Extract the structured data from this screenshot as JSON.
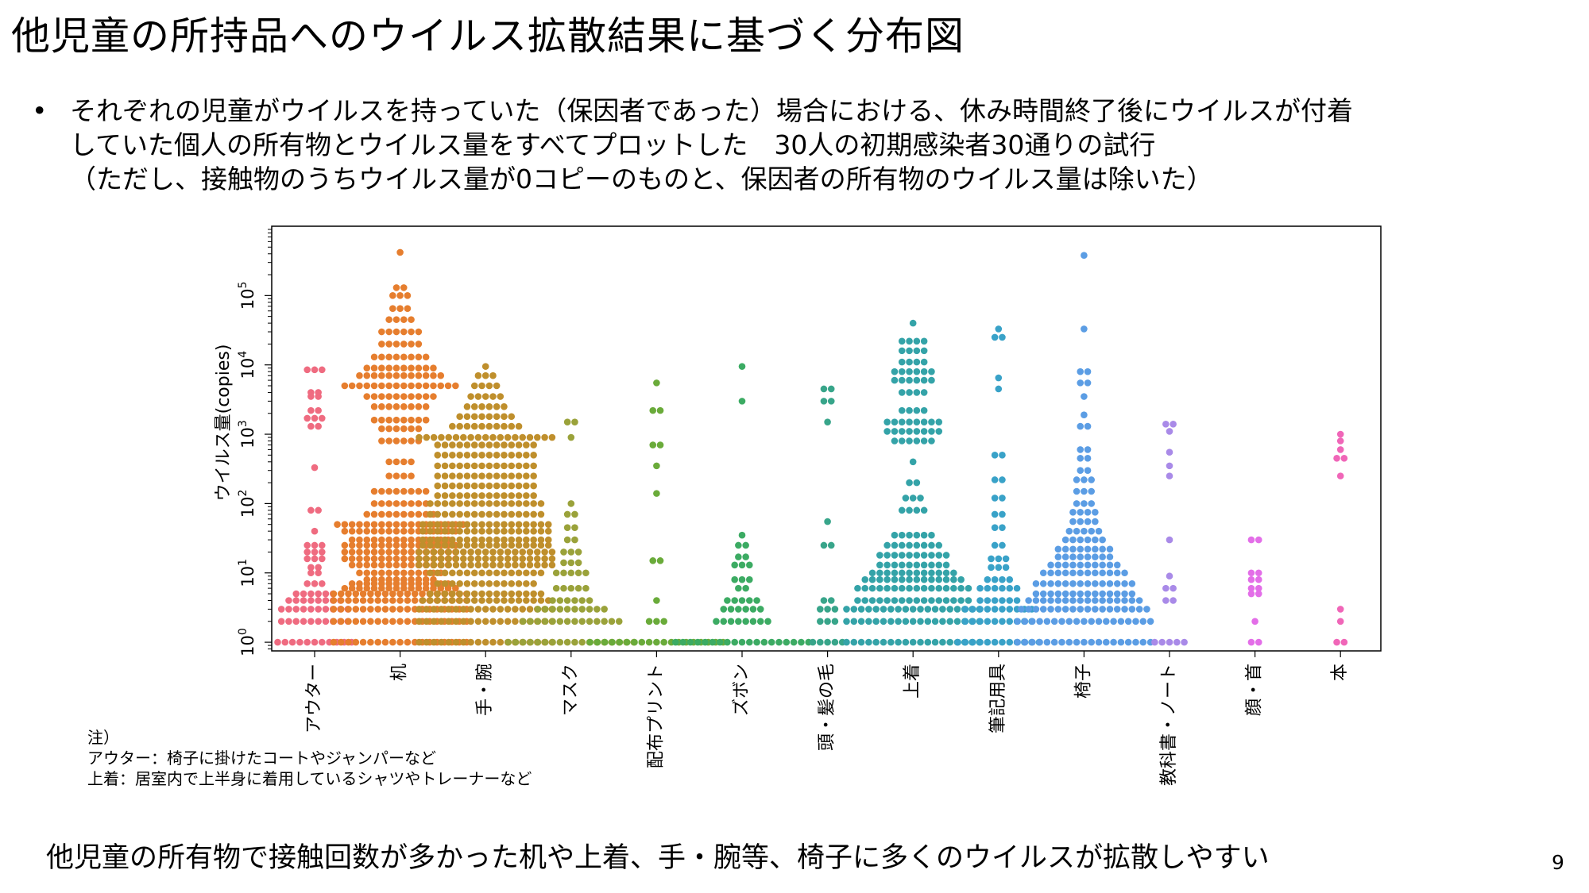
{
  "title": "他児童の所持品へのウイルス拡散結果に基づく分布図",
  "bullet": {
    "marker": "•",
    "lines": [
      "それぞれの児童がウイルスを持っていた（保因者であった）場合における、休み時間終了後にウイルスが付着",
      "していた個人の所有物とウイルス量をすべてプロットした　30人の初期感染者30通りの試行",
      "（ただし、接触物のうちウイルス量が0コピーのものと、保因者の所有物のウイルス量は除いた）"
    ]
  },
  "note": {
    "heading": "注）",
    "line1": "アウター：椅子に掛けたコートやジャンパーなど",
    "line2": "上着：居室内で上半身に着用しているシャツやトレーナーなど"
  },
  "conclusion": "他児童の所有物で接触回数が多かった机や上着、手・腕等、椅子に多くのウイルスが拡散しやすい",
  "page_number": "9",
  "chart_data": {
    "type": "scatter",
    "style": "swarm",
    "ylabel": "ウイルス量(copies)",
    "yscale": "log",
    "ylim": [
      0.75,
      1000000
    ],
    "yticks": [
      {
        "value": 1,
        "base": "10",
        "exp": "0"
      },
      {
        "value": 10,
        "base": "10",
        "exp": "1"
      },
      {
        "value": 100,
        "base": "10",
        "exp": "2"
      },
      {
        "value": 1000,
        "base": "10",
        "exp": "3"
      },
      {
        "value": 10000,
        "base": "10",
        "exp": "4"
      },
      {
        "value": 100000,
        "base": "10",
        "exp": "5"
      }
    ],
    "categories": [
      "アウター",
      "机",
      "手・腕",
      "マスク",
      "配布プリント",
      "ズボン",
      "頭・髪の毛",
      "上着",
      "筆記用具",
      "椅子",
      "教科書・ノート",
      "顔・首",
      "本"
    ],
    "colors": [
      "#ef6b80",
      "#e67e2e",
      "#bf8f2c",
      "#9aa23a",
      "#6aab3a",
      "#3cab63",
      "#38a58a",
      "#34a3a8",
      "#39a2c8",
      "#5b9de4",
      "#a98ae8",
      "#e36ee8",
      "#f066b8"
    ],
    "series": [
      {
        "name": "アウター",
        "values": [
          {
            "v": 1,
            "n": 11
          },
          {
            "v": 2,
            "n": 10
          },
          {
            "v": 3,
            "n": 10
          },
          {
            "v": 4,
            "n": 8
          },
          {
            "v": 5,
            "n": 6
          },
          {
            "v": 7,
            "n": 3
          },
          {
            "v": 10,
            "n": 2
          },
          {
            "v": 12,
            "n": 2
          },
          {
            "v": 16,
            "n": 3
          },
          {
            "v": 20,
            "n": 3
          },
          {
            "v": 25,
            "n": 3
          },
          {
            "v": 40,
            "n": 1
          },
          {
            "v": 80,
            "n": 2
          },
          {
            "v": 330,
            "n": 1
          },
          {
            "v": 1300,
            "n": 2
          },
          {
            "v": 1700,
            "n": 3
          },
          {
            "v": 2200,
            "n": 2
          },
          {
            "v": 3500,
            "n": 2
          },
          {
            "v": 4000,
            "n": 2
          },
          {
            "v": 8500,
            "n": 3
          }
        ]
      },
      {
        "name": "机",
        "values": [
          {
            "v": 1,
            "n": 19
          },
          {
            "v": 2,
            "n": 19
          },
          {
            "v": 3,
            "n": 19
          },
          {
            "v": 4,
            "n": 19
          },
          {
            "v": 5,
            "n": 19
          },
          {
            "v": 6,
            "n": 16
          },
          {
            "v": 7,
            "n": 14
          },
          {
            "v": 8,
            "n": 10
          },
          {
            "v": 10,
            "n": 12
          },
          {
            "v": 13,
            "n": 14
          },
          {
            "v": 16,
            "n": 16
          },
          {
            "v": 20,
            "n": 16
          },
          {
            "v": 25,
            "n": 16
          },
          {
            "v": 30,
            "n": 14
          },
          {
            "v": 40,
            "n": 16
          },
          {
            "v": 50,
            "n": 18
          },
          {
            "v": 70,
            "n": 10
          },
          {
            "v": 100,
            "n": 8
          },
          {
            "v": 150,
            "n": 8
          },
          {
            "v": 250,
            "n": 4
          },
          {
            "v": 400,
            "n": 4
          },
          {
            "v": 800,
            "n": 6
          },
          {
            "v": 1200,
            "n": 6
          },
          {
            "v": 1600,
            "n": 8
          },
          {
            "v": 2500,
            "n": 8
          },
          {
            "v": 3500,
            "n": 10
          },
          {
            "v": 5000,
            "n": 16
          },
          {
            "v": 7000,
            "n": 12
          },
          {
            "v": 9000,
            "n": 10
          },
          {
            "v": 13000,
            "n": 8
          },
          {
            "v": 20000,
            "n": 6
          },
          {
            "v": 30000,
            "n": 6
          },
          {
            "v": 45000,
            "n": 4
          },
          {
            "v": 65000,
            "n": 3
          },
          {
            "v": 100000,
            "n": 3
          },
          {
            "v": 130000,
            "n": 2
          },
          {
            "v": 420000,
            "n": 1
          }
        ]
      },
      {
        "name": "手・腕",
        "values": [
          {
            "v": 1,
            "n": 19
          },
          {
            "v": 2,
            "n": 19
          },
          {
            "v": 3,
            "n": 19
          },
          {
            "v": 4,
            "n": 18
          },
          {
            "v": 5,
            "n": 16
          },
          {
            "v": 7,
            "n": 14
          },
          {
            "v": 10,
            "n": 16
          },
          {
            "v": 13,
            "n": 19
          },
          {
            "v": 16,
            "n": 19
          },
          {
            "v": 20,
            "n": 19
          },
          {
            "v": 25,
            "n": 18
          },
          {
            "v": 30,
            "n": 18
          },
          {
            "v": 40,
            "n": 18
          },
          {
            "v": 50,
            "n": 18
          },
          {
            "v": 70,
            "n": 16
          },
          {
            "v": 100,
            "n": 16
          },
          {
            "v": 130,
            "n": 14
          },
          {
            "v": 180,
            "n": 14
          },
          {
            "v": 250,
            "n": 14
          },
          {
            "v": 350,
            "n": 14
          },
          {
            "v": 500,
            "n": 14
          },
          {
            "v": 700,
            "n": 14
          },
          {
            "v": 900,
            "n": 19
          },
          {
            "v": 1300,
            "n": 10
          },
          {
            "v": 1800,
            "n": 8
          },
          {
            "v": 2500,
            "n": 6
          },
          {
            "v": 3500,
            "n": 5
          },
          {
            "v": 5000,
            "n": 4
          },
          {
            "v": 7000,
            "n": 3
          },
          {
            "v": 9500,
            "n": 1
          }
        ]
      },
      {
        "name": "マスク",
        "values": [
          {
            "v": 1,
            "n": 18
          },
          {
            "v": 2,
            "n": 14
          },
          {
            "v": 3,
            "n": 10
          },
          {
            "v": 4,
            "n": 6
          },
          {
            "v": 6,
            "n": 5
          },
          {
            "v": 10,
            "n": 5
          },
          {
            "v": 14,
            "n": 3
          },
          {
            "v": 20,
            "n": 3
          },
          {
            "v": 30,
            "n": 2
          },
          {
            "v": 45,
            "n": 2
          },
          {
            "v": 70,
            "n": 2
          },
          {
            "v": 100,
            "n": 1
          },
          {
            "v": 900,
            "n": 1
          },
          {
            "v": 1500,
            "n": 2
          }
        ]
      },
      {
        "name": "配布プリント",
        "values": [
          {
            "v": 1,
            "n": 19
          },
          {
            "v": 2,
            "n": 3
          },
          {
            "v": 4,
            "n": 1
          },
          {
            "v": 15,
            "n": 2
          },
          {
            "v": 140,
            "n": 1
          },
          {
            "v": 350,
            "n": 1
          },
          {
            "v": 700,
            "n": 2
          },
          {
            "v": 2200,
            "n": 2
          },
          {
            "v": 5500,
            "n": 1
          }
        ]
      },
      {
        "name": "ズボン",
        "values": [
          {
            "v": 1,
            "n": 19
          },
          {
            "v": 2,
            "n": 8
          },
          {
            "v": 3,
            "n": 6
          },
          {
            "v": 4,
            "n": 5
          },
          {
            "v": 6,
            "n": 2
          },
          {
            "v": 8,
            "n": 3
          },
          {
            "v": 13,
            "n": 3
          },
          {
            "v": 17,
            "n": 2
          },
          {
            "v": 25,
            "n": 2
          },
          {
            "v": 35,
            "n": 1
          },
          {
            "v": 3000,
            "n": 1
          },
          {
            "v": 9500,
            "n": 1
          }
        ]
      },
      {
        "name": "頭・髪の毛",
        "values": [
          {
            "v": 1,
            "n": 5
          },
          {
            "v": 2,
            "n": 3
          },
          {
            "v": 3,
            "n": 3
          },
          {
            "v": 4,
            "n": 2
          },
          {
            "v": 25,
            "n": 2
          },
          {
            "v": 55,
            "n": 1
          },
          {
            "v": 1500,
            "n": 1
          },
          {
            "v": 3000,
            "n": 2
          },
          {
            "v": 4500,
            "n": 2
          }
        ]
      },
      {
        "name": "上着",
        "values": [
          {
            "v": 1,
            "n": 19
          },
          {
            "v": 2,
            "n": 19
          },
          {
            "v": 3,
            "n": 19
          },
          {
            "v": 4,
            "n": 16
          },
          {
            "v": 6,
            "n": 16
          },
          {
            "v": 8,
            "n": 14
          },
          {
            "v": 10,
            "n": 12
          },
          {
            "v": 13,
            "n": 10
          },
          {
            "v": 18,
            "n": 10
          },
          {
            "v": 25,
            "n": 8
          },
          {
            "v": 35,
            "n": 6
          },
          {
            "v": 80,
            "n": 4
          },
          {
            "v": 120,
            "n": 3
          },
          {
            "v": 200,
            "n": 2
          },
          {
            "v": 400,
            "n": 1
          },
          {
            "v": 800,
            "n": 6
          },
          {
            "v": 1100,
            "n": 8
          },
          {
            "v": 1500,
            "n": 8
          },
          {
            "v": 2200,
            "n": 4
          },
          {
            "v": 4000,
            "n": 4
          },
          {
            "v": 6000,
            "n": 6
          },
          {
            "v": 8000,
            "n": 6
          },
          {
            "v": 11000,
            "n": 4
          },
          {
            "v": 16000,
            "n": 4
          },
          {
            "v": 22000,
            "n": 4
          },
          {
            "v": 40000,
            "n": 1
          }
        ]
      },
      {
        "name": "筆記用具",
        "values": [
          {
            "v": 1,
            "n": 12
          },
          {
            "v": 2,
            "n": 10
          },
          {
            "v": 3,
            "n": 10
          },
          {
            "v": 4,
            "n": 6
          },
          {
            "v": 6,
            "n": 6
          },
          {
            "v": 8,
            "n": 4
          },
          {
            "v": 12,
            "n": 3
          },
          {
            "v": 16,
            "n": 3
          },
          {
            "v": 25,
            "n": 2
          },
          {
            "v": 45,
            "n": 2
          },
          {
            "v": 70,
            "n": 2
          },
          {
            "v": 120,
            "n": 2
          },
          {
            "v": 220,
            "n": 2
          },
          {
            "v": 500,
            "n": 2
          },
          {
            "v": 4500,
            "n": 1
          },
          {
            "v": 6500,
            "n": 1
          },
          {
            "v": 25000,
            "n": 2
          },
          {
            "v": 33000,
            "n": 1
          }
        ]
      },
      {
        "name": "椅子",
        "values": [
          {
            "v": 1,
            "n": 19
          },
          {
            "v": 2,
            "n": 19
          },
          {
            "v": 3,
            "n": 18
          },
          {
            "v": 4,
            "n": 16
          },
          {
            "v": 5,
            "n": 14
          },
          {
            "v": 7,
            "n": 14
          },
          {
            "v": 10,
            "n": 12
          },
          {
            "v": 13,
            "n": 10
          },
          {
            "v": 17,
            "n": 8
          },
          {
            "v": 22,
            "n": 8
          },
          {
            "v": 30,
            "n": 6
          },
          {
            "v": 40,
            "n": 5
          },
          {
            "v": 55,
            "n": 4
          },
          {
            "v": 75,
            "n": 4
          },
          {
            "v": 100,
            "n": 3
          },
          {
            "v": 150,
            "n": 3
          },
          {
            "v": 220,
            "n": 3
          },
          {
            "v": 300,
            "n": 2
          },
          {
            "v": 450,
            "n": 2
          },
          {
            "v": 600,
            "n": 2
          },
          {
            "v": 1300,
            "n": 2
          },
          {
            "v": 1900,
            "n": 1
          },
          {
            "v": 3500,
            "n": 1
          },
          {
            "v": 5500,
            "n": 2
          },
          {
            "v": 8000,
            "n": 2
          },
          {
            "v": 33000,
            "n": 1
          },
          {
            "v": 380000,
            "n": 1
          }
        ]
      },
      {
        "name": "教科書・ノート",
        "values": [
          {
            "v": 1,
            "n": 5
          },
          {
            "v": 4,
            "n": 2
          },
          {
            "v": 6,
            "n": 2
          },
          {
            "v": 9,
            "n": 1
          },
          {
            "v": 30,
            "n": 1
          },
          {
            "v": 250,
            "n": 1
          },
          {
            "v": 350,
            "n": 1
          },
          {
            "v": 550,
            "n": 1
          },
          {
            "v": 1100,
            "n": 1
          },
          {
            "v": 1400,
            "n": 2
          }
        ]
      },
      {
        "name": "顔・首",
        "values": [
          {
            "v": 1,
            "n": 2
          },
          {
            "v": 2,
            "n": 1
          },
          {
            "v": 5,
            "n": 2
          },
          {
            "v": 6,
            "n": 2
          },
          {
            "v": 8,
            "n": 2
          },
          {
            "v": 10,
            "n": 2
          },
          {
            "v": 30,
            "n": 2
          }
        ]
      },
      {
        "name": "本",
        "values": [
          {
            "v": 1,
            "n": 2
          },
          {
            "v": 2,
            "n": 1
          },
          {
            "v": 3,
            "n": 1
          },
          {
            "v": 250,
            "n": 1
          },
          {
            "v": 450,
            "n": 2
          },
          {
            "v": 600,
            "n": 1
          },
          {
            "v": 800,
            "n": 1
          },
          {
            "v": 1000,
            "n": 1
          }
        ]
      }
    ]
  }
}
